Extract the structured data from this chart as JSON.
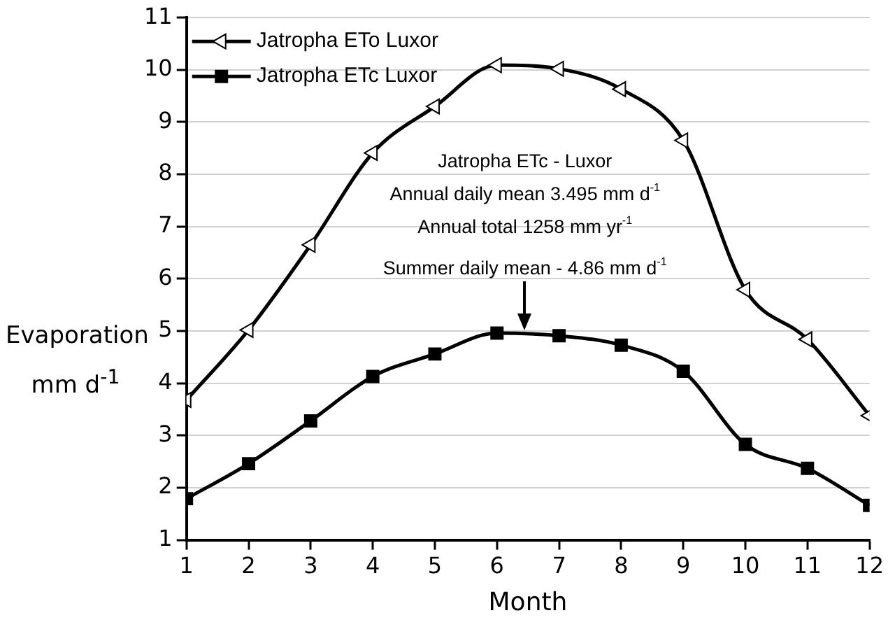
{
  "chart_data": {
    "type": "line",
    "xlabel": "Month",
    "ylabel": "Evaporation mm d$^{-1}$",
    "x": [
      1,
      2,
      3,
      4,
      5,
      6,
      7,
      8,
      9,
      10,
      11,
      12
    ],
    "series": [
      {
        "name": "Jatropha ETo Luxor",
        "color": "#000000",
        "marker": "triangle",
        "values": [
          3.68,
          5.02,
          6.65,
          8.41,
          9.3,
          10.09,
          10.02,
          9.63,
          8.65,
          5.79,
          4.84,
          3.38
        ]
      },
      {
        "name": "Jatropha ETc Luxor",
        "color": "#000000",
        "marker": "square",
        "values": [
          1.79,
          2.46,
          3.28,
          4.13,
          4.56,
          4.96,
          4.91,
          4.73,
          4.23,
          2.83,
          2.37,
          1.66
        ]
      }
    ],
    "xlim": [
      1,
      12
    ],
    "xticks": [
      1,
      2,
      3,
      4,
      5,
      6,
      7,
      8,
      9,
      10,
      11,
      12
    ],
    "ylim": [
      1,
      11
    ],
    "yticks": [
      1,
      2,
      3,
      4,
      5,
      6,
      7,
      8,
      9,
      10,
      11
    ],
    "grid": "y",
    "legend": "top left",
    "line_style": "solid",
    "annotations": [
      "Jatropha ETc - Luxor",
      "Annual daily mean 3.495 mm d$^{-1}$",
      "Annual total 1258 mm yr$^{-1}$",
      {
        "text": "Summer daily mean - 4.86 mm d$^{-1}$",
        "x": 6.45,
        "y": 5
      }
    ]
  }
}
